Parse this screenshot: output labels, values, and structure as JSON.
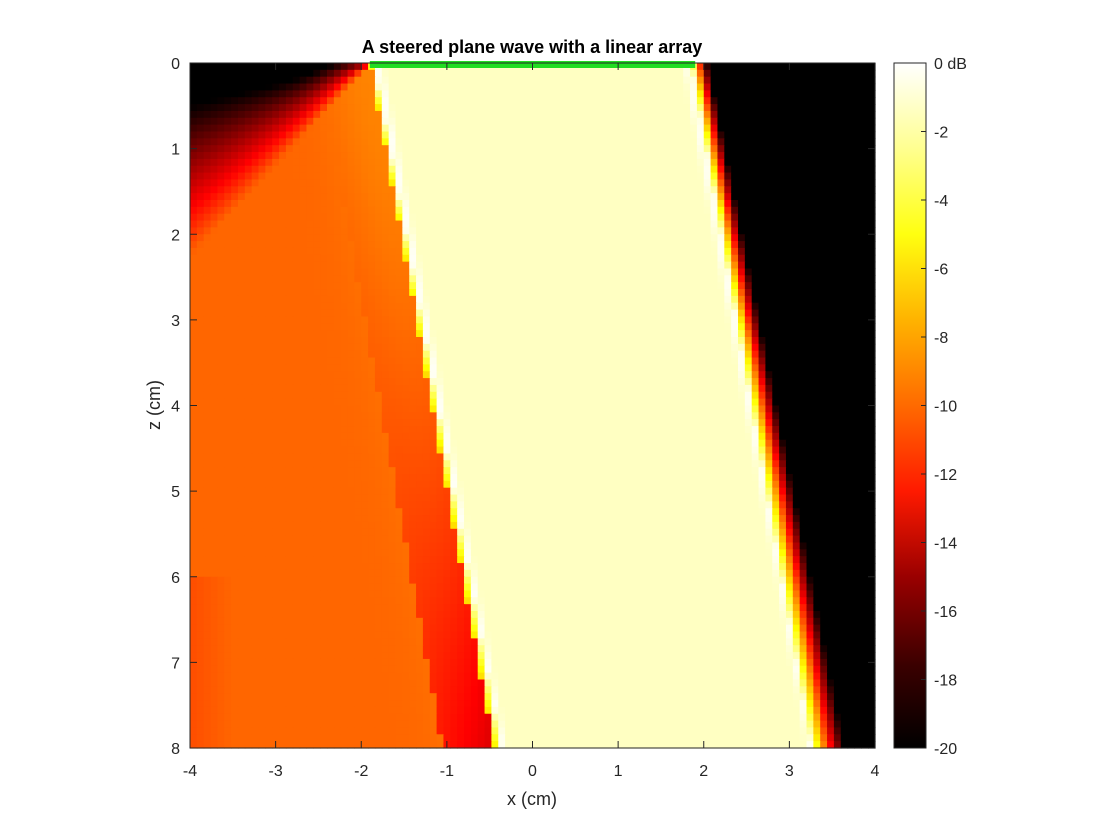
{
  "chart_data": {
    "type": "heatmap",
    "title": "A steered plane wave with a linear array",
    "xlabel": "x (cm)",
    "ylabel": "z (cm)",
    "xlim": [
      -4,
      4
    ],
    "ylim": [
      0,
      8
    ],
    "y_reversed": true,
    "x_ticks": [
      "-4",
      "-3",
      "-2",
      "-1",
      "0",
      "1",
      "2",
      "3",
      "4"
    ],
    "y_ticks": [
      "0",
      "1",
      "2",
      "3",
      "4",
      "5",
      "6",
      "7",
      "8"
    ],
    "colormap": "hot",
    "colorbar": {
      "range_db": [
        -20,
        0
      ],
      "tick_values": [
        0,
        -2,
        -4,
        -6,
        -8,
        -10,
        -12,
        -14,
        -16,
        -18,
        -20
      ],
      "tick_labels": [
        "0 dB",
        "-2",
        "-4",
        "-6",
        "-8",
        "-10",
        "-12",
        "-14",
        "-16",
        "-18",
        "-20"
      ]
    },
    "array": {
      "x_start": -1.9,
      "x_end": 1.9,
      "z": 0,
      "color": "#22dd22"
    },
    "beam": {
      "left_edge_top_x": -1.9,
      "left_edge_bottom_x": -0.45,
      "right_edge_top_x": 1.9,
      "right_edge_bottom_x": 3.35,
      "inside_level_db": -1.2,
      "outside_right_level_db": -20,
      "outside_left_level_db_near": -20,
      "outside_left_level_db_far": -9
    }
  }
}
